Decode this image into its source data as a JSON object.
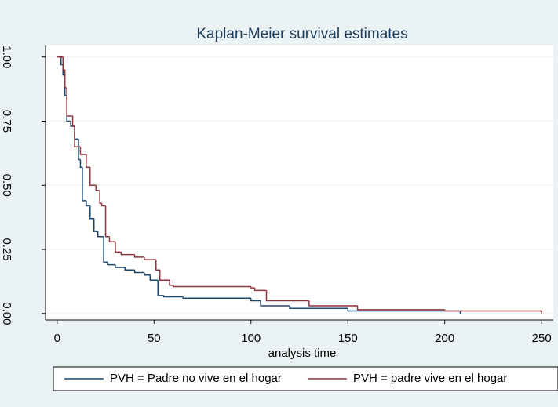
{
  "chart_data": {
    "type": "km-step",
    "title": "Kaplan-Meier survival estimates",
    "x_label": "analysis time",
    "xlim": [
      -6,
      256
    ],
    "ylim": [
      -0.025,
      1.045
    ],
    "xticks": [
      0,
      50,
      100,
      150,
      200,
      250
    ],
    "yticks": [
      {
        "value": 0,
        "label": "0.00"
      },
      {
        "value": 0.25,
        "label": "0.25"
      },
      {
        "value": 0.5,
        "label": "0.50"
      },
      {
        "value": 0.75,
        "label": "0.75"
      },
      {
        "value": 1,
        "label": "1.00"
      }
    ],
    "grid": true,
    "series": [
      {
        "name": "PVH = Padre no vive en el hogar",
        "color": "#1a476f",
        "x": [
          0,
          2,
          3,
          4,
          5,
          7,
          9,
          11,
          12,
          13,
          15,
          17,
          19,
          21,
          24,
          26,
          30,
          35,
          40,
          45,
          48,
          52,
          55,
          65,
          100,
          105,
          120,
          150,
          208
        ],
        "values": [
          1.0,
          0.97,
          0.93,
          0.85,
          0.75,
          0.73,
          0.68,
          0.6,
          0.57,
          0.44,
          0.42,
          0.37,
          0.32,
          0.3,
          0.2,
          0.19,
          0.18,
          0.17,
          0.16,
          0.15,
          0.13,
          0.07,
          0.065,
          0.06,
          0.05,
          0.03,
          0.02,
          0.01,
          0.0
        ]
      },
      {
        "name": "PVH = padre vive en el hogar",
        "color": "#90353b",
        "x": [
          0,
          3,
          4,
          5,
          8,
          9,
          12,
          15,
          17,
          20,
          22,
          23,
          25,
          27,
          30,
          33,
          40,
          45,
          51,
          53,
          58,
          60,
          100,
          102,
          108,
          130,
          155,
          200,
          250
        ],
        "values": [
          1.0,
          0.95,
          0.88,
          0.77,
          0.73,
          0.65,
          0.62,
          0.57,
          0.5,
          0.48,
          0.43,
          0.42,
          0.3,
          0.28,
          0.24,
          0.23,
          0.22,
          0.21,
          0.17,
          0.13,
          0.11,
          0.105,
          0.1,
          0.09,
          0.05,
          0.03,
          0.015,
          0.01,
          0.0
        ]
      }
    ]
  }
}
